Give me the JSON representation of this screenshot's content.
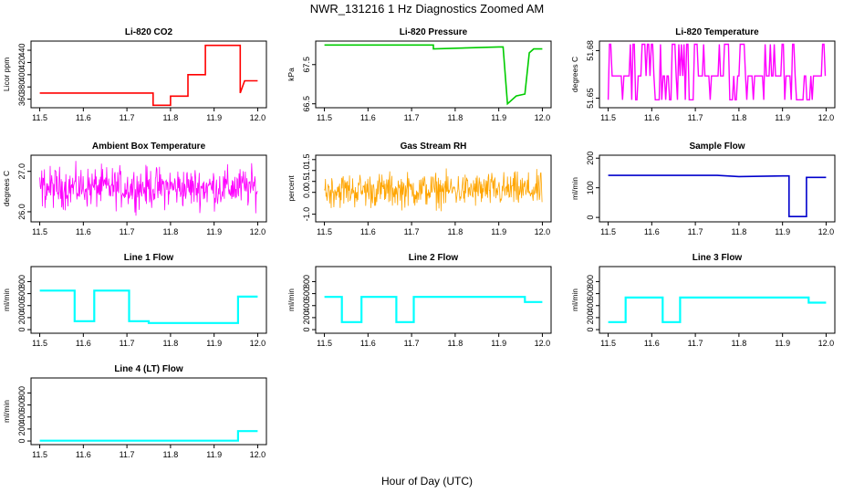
{
  "figure": {
    "title": "NWR_131216  1 Hz Diagnostics Zoomed AM",
    "xlabel": "Hour of Day (UTC)"
  },
  "chart_data": [
    {
      "type": "line",
      "title": "Li-820 CO2",
      "ylabel": "Licor ppm",
      "xlim": [
        11.48,
        12.02
      ],
      "ylim": [
        346,
        455
      ],
      "xticks": [
        11.5,
        11.6,
        11.7,
        11.8,
        11.9,
        12.0
      ],
      "yticks": [
        360,
        380,
        400,
        420,
        440
      ],
      "color": "#ff0000",
      "series": [
        {
          "name": "CO2",
          "x": [
            11.5,
            11.76,
            11.76,
            11.8,
            11.8,
            11.84,
            11.84,
            11.88,
            11.88,
            11.96,
            11.96,
            11.97,
            12.0
          ],
          "y": [
            370,
            370,
            350,
            350,
            365,
            365,
            400,
            400,
            448,
            448,
            370,
            390,
            390
          ]
        }
      ]
    },
    {
      "type": "line",
      "title": "Li-820 Pressure",
      "ylabel": "kPa",
      "xlim": [
        11.48,
        12.02
      ],
      "ylim": [
        66.4,
        68.1
      ],
      "xticks": [
        11.5,
        11.6,
        11.7,
        11.8,
        11.9,
        12.0
      ],
      "yticks": [
        66.5,
        67.5
      ],
      "ytick_labels": [
        "66.5",
        "67.5"
      ],
      "color": "#00cc00",
      "series": [
        {
          "name": "Pressure",
          "x": [
            11.5,
            11.75,
            11.75,
            11.9,
            11.91,
            11.92,
            11.94,
            11.96,
            11.97,
            11.98,
            12.0
          ],
          "y": [
            68.0,
            68.0,
            67.9,
            67.95,
            67.95,
            66.5,
            66.7,
            66.75,
            67.8,
            67.9,
            67.9
          ]
        }
      ]
    },
    {
      "type": "line",
      "title": "Li-820 Temperature",
      "ylabel": "degrees C",
      "xlim": [
        11.48,
        12.02
      ],
      "ylim": [
        51.644,
        51.686
      ],
      "xticks": [
        11.5,
        11.6,
        11.7,
        11.8,
        11.9,
        12.0
      ],
      "yticks": [
        51.65,
        51.68
      ],
      "ytick_labels": [
        "51.65",
        "51.68"
      ],
      "color": "#ff00ff",
      "series": [
        {
          "name": "Temperature",
          "levels": [
            51.649,
            51.664,
            51.684
          ]
        }
      ]
    },
    {
      "type": "line",
      "title": "Ambient Box Temperature",
      "ylabel": "degrees C",
      "xlim": [
        11.48,
        12.02
      ],
      "ylim": [
        25.75,
        27.4
      ],
      "xticks": [
        11.5,
        11.6,
        11.7,
        11.8,
        11.9,
        12.0
      ],
      "yticks": [
        26.0,
        27.0
      ],
      "ytick_labels": [
        "26.0",
        "27.0"
      ],
      "color": "#ff00ff",
      "series": [
        {
          "name": "Box Temperature",
          "mean": 26.6,
          "spread": 0.35
        }
      ]
    },
    {
      "type": "line",
      "title": "Gas Stream RH",
      "ylabel": "percent",
      "xlim": [
        11.48,
        12.02
      ],
      "ylim": [
        -1.35,
        1.7
      ],
      "xticks": [
        11.5,
        11.6,
        11.7,
        11.8,
        11.9,
        12.0
      ],
      "yticks": [
        -1.0,
        0.0,
        0.5,
        1.0,
        1.5
      ],
      "ytick_labels": [
        "-1.0",
        "0.0",
        "0.5",
        "1.0",
        "1.5"
      ],
      "color": "#ffa500",
      "series": [
        {
          "name": "RH",
          "mean": 0.1,
          "spread": 0.55
        }
      ]
    },
    {
      "type": "line",
      "title": "Sample Flow",
      "ylabel": "ml/min",
      "xlim": [
        11.48,
        12.02
      ],
      "ylim": [
        -15,
        210
      ],
      "xticks": [
        11.5,
        11.6,
        11.7,
        11.8,
        11.9,
        12.0
      ],
      "yticks": [
        0,
        100,
        200
      ],
      "color": "#0000cc",
      "series": [
        {
          "name": "Sample Flow",
          "x": [
            11.5,
            11.75,
            11.8,
            11.9,
            11.915,
            11.915,
            11.955,
            11.955,
            12.0
          ],
          "y": [
            142,
            142,
            138,
            140,
            140,
            3,
            3,
            135,
            135
          ]
        }
      ]
    },
    {
      "type": "line",
      "title": "Line 1 Flow",
      "ylabel": "ml/min",
      "xlim": [
        11.48,
        12.02
      ],
      "ylim": [
        -60,
        1050
      ],
      "xticks": [
        11.5,
        11.6,
        11.7,
        11.8,
        11.9,
        12.0
      ],
      "yticks": [
        0,
        200,
        400,
        600,
        800
      ],
      "color": "#00ffff",
      "series": [
        {
          "name": "Line 1",
          "x": [
            11.5,
            11.58,
            11.58,
            11.625,
            11.625,
            11.705,
            11.705,
            11.75,
            11.75,
            11.955,
            11.955,
            12.0
          ],
          "y": [
            650,
            650,
            140,
            140,
            650,
            650,
            140,
            140,
            110,
            110,
            550,
            550
          ]
        }
      ]
    },
    {
      "type": "line",
      "title": "Line 2 Flow",
      "ylabel": "ml/min",
      "xlim": [
        11.48,
        12.02
      ],
      "ylim": [
        -60,
        1050
      ],
      "xticks": [
        11.5,
        11.6,
        11.7,
        11.8,
        11.9,
        12.0
      ],
      "yticks": [
        0,
        200,
        400,
        600,
        800
      ],
      "color": "#00ffff",
      "series": [
        {
          "name": "Line 2",
          "x": [
            11.5,
            11.54,
            11.54,
            11.585,
            11.585,
            11.665,
            11.665,
            11.705,
            11.705,
            11.96,
            11.96,
            12.0
          ],
          "y": [
            545,
            545,
            125,
            125,
            545,
            545,
            125,
            125,
            545,
            545,
            460,
            460
          ]
        }
      ]
    },
    {
      "type": "line",
      "title": "Line 3 Flow",
      "ylabel": "ml/min",
      "xlim": [
        11.48,
        12.02
      ],
      "ylim": [
        -60,
        1050
      ],
      "xticks": [
        11.5,
        11.6,
        11.7,
        11.8,
        11.9,
        12.0
      ],
      "yticks": [
        0,
        200,
        400,
        600,
        800
      ],
      "color": "#00ffff",
      "series": [
        {
          "name": "Line 3",
          "x": [
            11.5,
            11.54,
            11.54,
            11.625,
            11.625,
            11.665,
            11.665,
            11.96,
            11.96,
            12.0
          ],
          "y": [
            125,
            125,
            535,
            535,
            125,
            125,
            535,
            535,
            450,
            450
          ]
        }
      ]
    },
    {
      "type": "line",
      "title": "Line 4 (LT) Flow",
      "ylabel": "ml/min",
      "xlim": [
        11.48,
        12.02
      ],
      "ylim": [
        -60,
        1050
      ],
      "xticks": [
        11.5,
        11.6,
        11.7,
        11.8,
        11.9,
        12.0
      ],
      "yticks": [
        0,
        200,
        400,
        600,
        800
      ],
      "color": "#00ffff",
      "series": [
        {
          "name": "Line 4",
          "x": [
            11.5,
            11.955,
            11.955,
            12.0
          ],
          "y": [
            5,
            5,
            165,
            165
          ]
        }
      ]
    }
  ]
}
